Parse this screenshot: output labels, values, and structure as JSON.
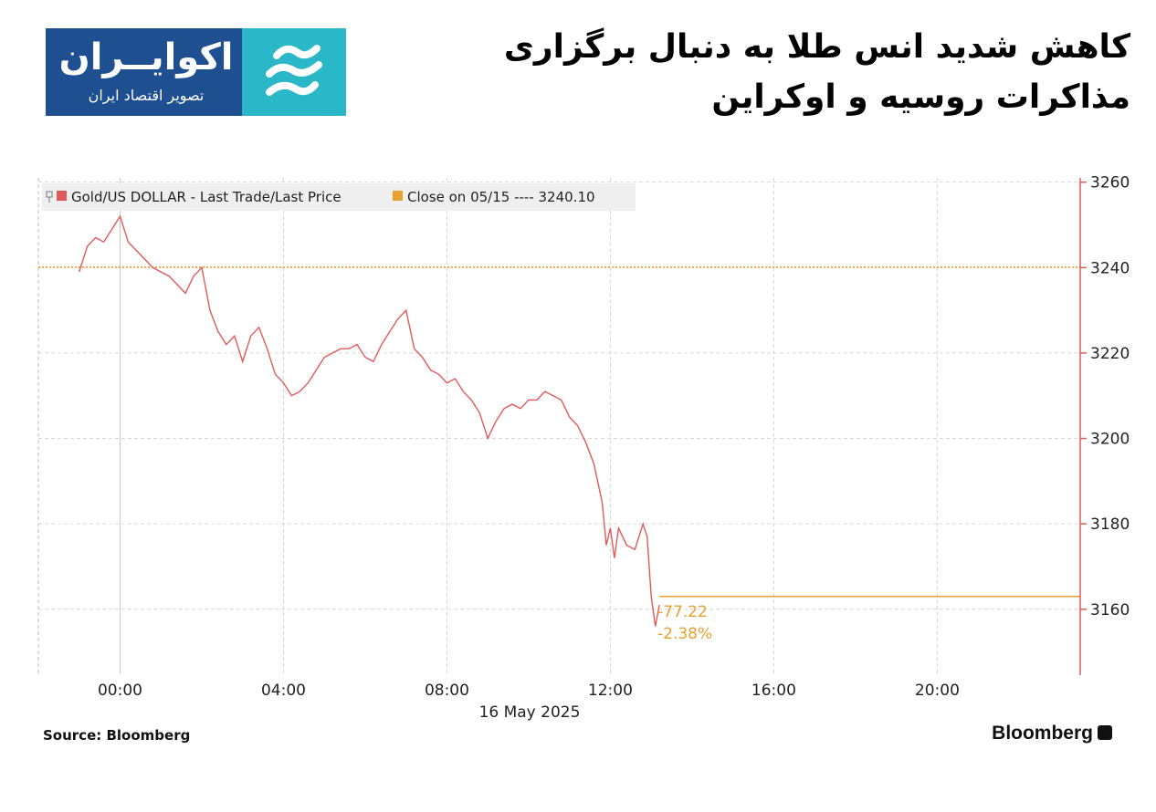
{
  "header": {
    "logo_brand": "اکوایــران",
    "logo_subtitle": "تصویر اقتصاد ایران",
    "title": "کاهش شدید انس طلا به دنبال برگزاری مذاکرات روسیه و اوکراین"
  },
  "footer": {
    "source": "Source: Bloomberg",
    "brand": "Bloomberg"
  },
  "colors": {
    "logo_blue": "#1d4f91",
    "logo_teal": "#2ab7c7",
    "price_line": "#e05a5a",
    "close_line": "#e8a02e",
    "change_text": "#e8a02e",
    "grid": "#d6d6d6",
    "right_axis": "#e05a5a"
  },
  "chart_data": {
    "type": "line",
    "legend": [
      {
        "label": "Gold/US DOLLAR - Last Trade/Last Price",
        "color": "#e05a5a"
      },
      {
        "label": "Close on 05/15 ---- 3240.10",
        "color": "#e8a02e"
      }
    ],
    "x_ticks": [
      "00:00",
      "04:00",
      "08:00",
      "12:00",
      "16:00",
      "20:00"
    ],
    "x_tick_hours": [
      0,
      4,
      8,
      12,
      16,
      20
    ],
    "x_date_label": "16 May 2025",
    "xlim_hours": [
      -2,
      23.5
    ],
    "y_ticks": [
      3260,
      3240,
      3220,
      3200,
      3180,
      3160
    ],
    "ylim": [
      3145,
      3261
    ],
    "y_axis_side": "right",
    "grid": true,
    "legend_position": "top-left",
    "series": [
      {
        "name": "Gold/US DOLLAR - Last Trade/Last Price",
        "x_hours": [
          -1.0,
          -0.8,
          -0.6,
          -0.4,
          -0.2,
          0.0,
          0.2,
          0.4,
          0.6,
          0.8,
          1.0,
          1.2,
          1.4,
          1.6,
          1.8,
          2.0,
          2.2,
          2.4,
          2.6,
          2.8,
          3.0,
          3.2,
          3.4,
          3.6,
          3.8,
          4.0,
          4.2,
          4.4,
          4.6,
          4.8,
          5.0,
          5.2,
          5.4,
          5.6,
          5.8,
          6.0,
          6.2,
          6.4,
          6.6,
          6.8,
          7.0,
          7.2,
          7.4,
          7.6,
          7.8,
          8.0,
          8.2,
          8.4,
          8.6,
          8.8,
          9.0,
          9.2,
          9.4,
          9.6,
          9.8,
          10.0,
          10.2,
          10.4,
          10.6,
          10.8,
          11.0,
          11.2,
          11.4,
          11.6,
          11.8,
          11.9,
          12.0,
          12.1,
          12.2,
          12.4,
          12.6,
          12.8,
          12.9,
          13.0,
          13.1,
          13.2
        ],
        "values": [
          3239,
          3245,
          3247,
          3246,
          3249,
          3252,
          3246,
          3244,
          3242,
          3240,
          3239,
          3238,
          3236,
          3234,
          3238,
          3240,
          3230,
          3225,
          3222,
          3224,
          3218,
          3224,
          3226,
          3221,
          3215,
          3213,
          3210,
          3211,
          3213,
          3216,
          3219,
          3220,
          3221,
          3221,
          3222,
          3219,
          3218,
          3222,
          3225,
          3228,
          3230,
          3221,
          3219,
          3216,
          3215,
          3213,
          3214,
          3211,
          3209,
          3206,
          3200,
          3204,
          3207,
          3208,
          3207,
          3209,
          3209,
          3211,
          3210,
          3209,
          3205,
          3203,
          3199,
          3194,
          3185,
          3175,
          3179,
          3172,
          3179,
          3175,
          3174,
          3180,
          3177,
          3163,
          3156,
          3161
        ]
      }
    ],
    "reference_line": {
      "name": "Close on 05/15",
      "value": 3240.1
    },
    "current_level": 3163,
    "change_labels": [
      "-77.22",
      "-2.38%"
    ]
  }
}
